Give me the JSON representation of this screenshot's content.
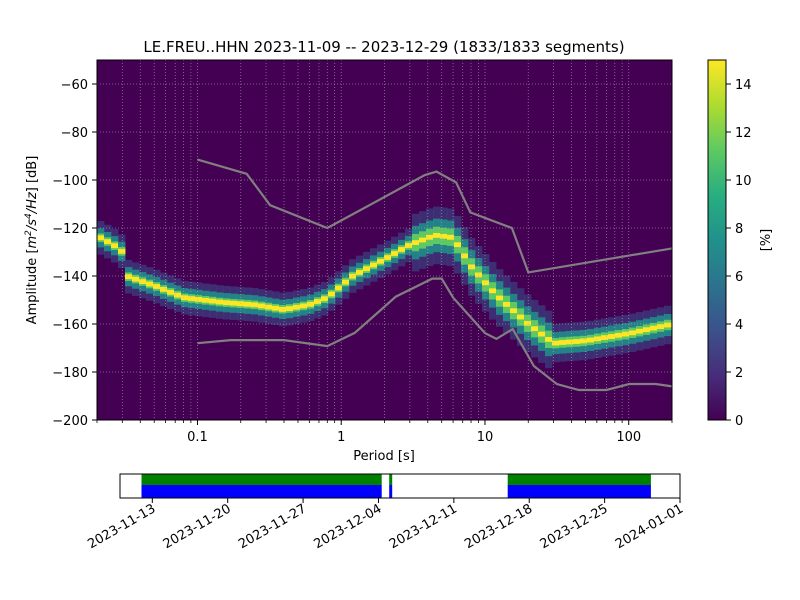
{
  "title": "LE.FREU..HHN   2023-11-09 -- 2023-12-29  (1833/1833 segments)",
  "chart_data": [
    {
      "type": "heatmap",
      "title": "LE.FREU..HHN   2023-11-09 -- 2023-12-29  (1833/1833 segments)",
      "xlabel": "Period [s]",
      "ylabel_parts": [
        "Amplitude [",
        "m",
        "2",
        "/s",
        "4",
        "/Hz",
        "] [dB]"
      ],
      "x_scale": "log",
      "xlim": [
        0.02,
        200
      ],
      "ylim": [
        -200,
        -50
      ],
      "x_ticks": [
        0.1,
        1,
        10,
        100
      ],
      "x_tick_labels": [
        "0.1",
        "1",
        "10",
        "100"
      ],
      "y_ticks": [
        -200,
        -180,
        -160,
        -140,
        -120,
        -100,
        -80,
        -60
      ],
      "y_tick_labels": [
        "−200",
        "−180",
        "−160",
        "−140",
        "−120",
        "−100",
        "−80",
        "−60"
      ],
      "grid": true,
      "background_color": "#440154",
      "colormap": "viridis",
      "colorbar": {
        "label": "[%]",
        "range": [
          0,
          15
        ],
        "ticks": [
          0,
          2,
          4,
          6,
          8,
          10,
          12,
          14
        ],
        "tick_labels": [
          "0",
          "2",
          "4",
          "6",
          "8",
          "10",
          "12",
          "14"
        ]
      },
      "mode_curve": [
        {
          "period": 0.021,
          "db": -124
        },
        {
          "period": 0.026,
          "db": -127
        },
        {
          "period": 0.03,
          "db": -130
        },
        {
          "period": 0.032,
          "db": -140
        },
        {
          "period": 0.05,
          "db": -144
        },
        {
          "period": 0.08,
          "db": -149
        },
        {
          "period": 0.15,
          "db": -151
        },
        {
          "period": 0.25,
          "db": -152
        },
        {
          "period": 0.4,
          "db": -154
        },
        {
          "period": 0.6,
          "db": -152
        },
        {
          "period": 0.8,
          "db": -149
        },
        {
          "period": 1.2,
          "db": -140
        },
        {
          "period": 2.0,
          "db": -133
        },
        {
          "period": 3.0,
          "db": -127
        },
        {
          "period": 4.5,
          "db": -123
        },
        {
          "period": 6.0,
          "db": -124
        },
        {
          "period": 8.0,
          "db": -136
        },
        {
          "period": 12,
          "db": -148
        },
        {
          "period": 20,
          "db": -160
        },
        {
          "period": 30,
          "db": -168
        },
        {
          "period": 50,
          "db": -167
        },
        {
          "period": 100,
          "db": -164
        },
        {
          "period": 200,
          "db": -160
        }
      ],
      "nlnm": [
        {
          "period": 0.1,
          "db": -168
        },
        {
          "period": 0.17,
          "db": -166.7
        },
        {
          "period": 0.4,
          "db": -166.7
        },
        {
          "period": 0.8,
          "db": -169.2
        },
        {
          "period": 1.24,
          "db": -163.7
        },
        {
          "period": 2.4,
          "db": -148.6
        },
        {
          "period": 4.3,
          "db": -141.1
        },
        {
          "period": 5.0,
          "db": -141.1
        },
        {
          "period": 6.0,
          "db": -149
        },
        {
          "period": 10,
          "db": -163.8
        },
        {
          "period": 12,
          "db": -166.2
        },
        {
          "period": 15.6,
          "db": -162.1
        },
        {
          "period": 21.9,
          "db": -177.5
        },
        {
          "period": 31.6,
          "db": -185
        },
        {
          "period": 45,
          "db": -187.5
        },
        {
          "period": 70,
          "db": -187.5
        },
        {
          "period": 101,
          "db": -185
        },
        {
          "period": 154,
          "db": -185
        },
        {
          "period": 200,
          "db": -186
        }
      ],
      "nhnm": [
        {
          "period": 0.1,
          "db": -91.5
        },
        {
          "period": 0.22,
          "db": -97.4
        },
        {
          "period": 0.32,
          "db": -110.5
        },
        {
          "period": 0.8,
          "db": -120
        },
        {
          "period": 3.8,
          "db": -98
        },
        {
          "period": 4.6,
          "db": -96.5
        },
        {
          "period": 6.3,
          "db": -101
        },
        {
          "period": 7.9,
          "db": -113.5
        },
        {
          "period": 15.4,
          "db": -120
        },
        {
          "period": 20,
          "db": -138.5
        },
        {
          "period": 200,
          "db": -128.5
        }
      ],
      "mode_band_colors": [
        "#fde725",
        "#5ec962",
        "#21918c",
        "#3b528b"
      ]
    },
    {
      "type": "timeline",
      "x_ticks": [
        "2023-11-13",
        "2023-11-20",
        "2023-11-27",
        "2023-12-04",
        "2023-12-11",
        "2023-12-18",
        "2023-12-25",
        "2024-01-01"
      ],
      "xlim": [
        "2023-11-10",
        "2024-01-01"
      ],
      "coverage_color": "#0000ff",
      "ppsd_color": "#008000",
      "coverage_segments": [
        {
          "start": "2023-11-12",
          "end": "2023-12-04"
        },
        {
          "start": "2023-12-05",
          "end": "2023-12-05"
        },
        {
          "start": "2023-12-16",
          "end": "2023-12-29"
        }
      ]
    }
  ]
}
